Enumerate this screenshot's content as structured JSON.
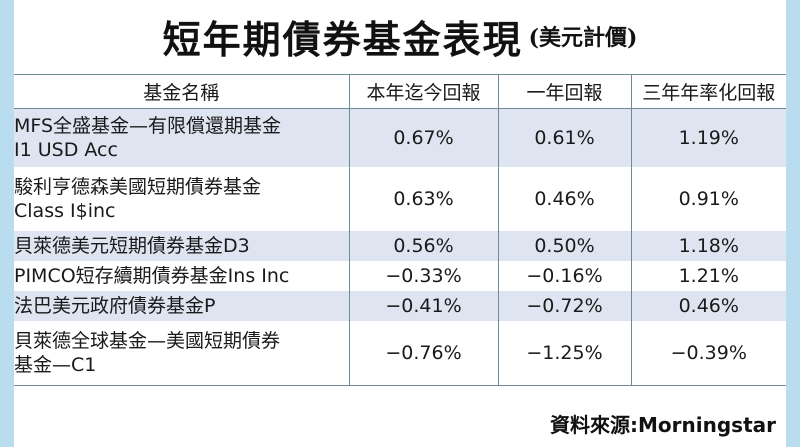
{
  "title": {
    "main": "短年期債券基金表現",
    "sub": "(美元計價)"
  },
  "table": {
    "headers": [
      "基金名稱",
      "本年迄今回報",
      "一年回報",
      "三年年率化回報"
    ],
    "rows": [
      {
        "name_line1": "MFS全盛基金—有限償還期基金",
        "name_line2": "I1 USD Acc",
        "ytd": "0.67%",
        "one_year": "0.61%",
        "three_year": "1.19%"
      },
      {
        "name_line1": "駿利亨德森美國短期債券基金",
        "name_line2": "Class I$inc",
        "ytd": "0.63%",
        "one_year": "0.46%",
        "three_year": "0.91%"
      },
      {
        "name_line1": "貝萊德美元短期債券基金D3",
        "name_line2": "",
        "ytd": "0.56%",
        "one_year": "0.50%",
        "three_year": "1.18%"
      },
      {
        "name_line1": "PIMCO短存續期債券基金Ins Inc",
        "name_line2": "",
        "ytd": "−0.33%",
        "one_year": "−0.16%",
        "three_year": "1.21%"
      },
      {
        "name_line1": "法巴美元政府債券基金P",
        "name_line2": "",
        "ytd": "−0.41%",
        "one_year": "−0.72%",
        "three_year": "0.46%"
      },
      {
        "name_line1": "貝萊德全球基金—美國短期債券",
        "name_line2": "基金—C1",
        "ytd": "−0.76%",
        "one_year": "−1.25%",
        "three_year": "−0.39%"
      }
    ]
  },
  "source": "資料來源:Morningstar",
  "colors": {
    "background": "#b9dcee",
    "row_shade": "#dfe4f1",
    "border": "#6e8a98"
  }
}
